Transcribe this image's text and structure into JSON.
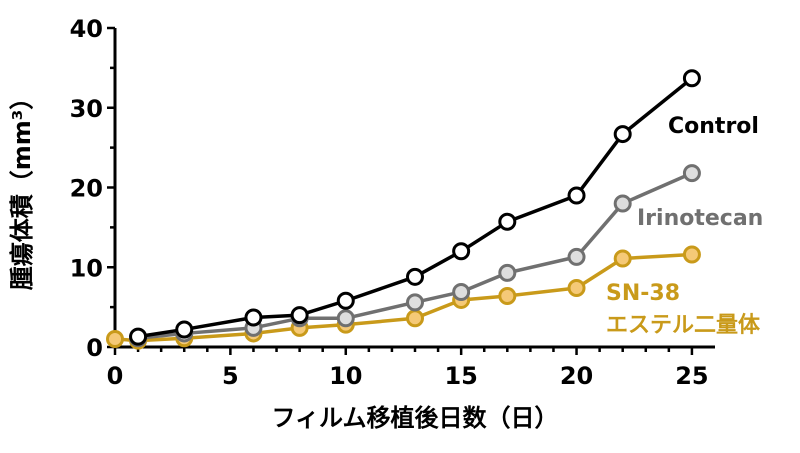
{
  "chart_data": {
    "type": "line",
    "xlabel": "フィルム移植後日数（日）",
    "ylabel": "腫瘍体積（mm³）",
    "xlim": [
      0,
      26
    ],
    "ylim": [
      0,
      40
    ],
    "xticks": [
      0,
      5,
      10,
      15,
      20,
      25
    ],
    "yticks": [
      0,
      10,
      20,
      30,
      40
    ],
    "grid": false,
    "legend": "inline-right",
    "series": [
      {
        "name": "Control",
        "label_lines": [
          "Control"
        ],
        "color": "#000000",
        "marker_fill": "#ffffff",
        "x": [
          1,
          3,
          6,
          8,
          10,
          13,
          15,
          17,
          20,
          22,
          25
        ],
        "y": [
          1.3,
          2.2,
          3.7,
          4.0,
          5.8,
          8.8,
          12.0,
          15.7,
          19.0,
          26.7,
          33.7
        ]
      },
      {
        "name": "Irinotecan",
        "label_lines": [
          "Irinotecan"
        ],
        "color": "#707070",
        "marker_fill": "#dedede",
        "x": [
          1,
          3,
          6,
          8,
          10,
          13,
          15,
          17,
          20,
          22,
          25
        ],
        "y": [
          1.1,
          1.7,
          2.4,
          3.6,
          3.6,
          5.6,
          6.9,
          9.3,
          11.3,
          18.0,
          21.8
        ]
      },
      {
        "name": "SN-38 エステル二量体",
        "label_lines": [
          "SN-38",
          "エステル二量体"
        ],
        "color": "#c99a1a",
        "marker_fill": "#f5c977",
        "x": [
          0,
          1,
          3,
          6,
          8,
          10,
          13,
          15,
          17,
          20,
          22,
          25
        ],
        "y": [
          1.0,
          0.8,
          1.1,
          1.7,
          2.4,
          2.8,
          3.6,
          5.9,
          6.4,
          7.4,
          11.1,
          11.6
        ]
      }
    ]
  }
}
